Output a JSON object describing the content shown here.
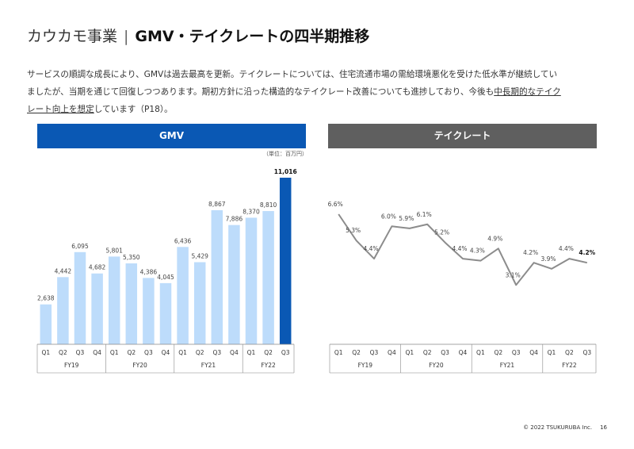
{
  "header": {
    "segment": "カウカモ事業",
    "separator": "|",
    "title": "GMV・テイクレートの四半期推移"
  },
  "description": {
    "line1": "サービスの順調な成長により、GMVは過去最高を更新。テイクレートについては、住宅流通市場の需給環境悪化を受けた低水準が継続してい",
    "line2": "ましたが、当期を通じて回復しつつあります。期初方針に沿った構造的なテイクレート改善についても進捗しており、今後も",
    "line2_underlined": "中長期的なテイク",
    "line3_underlined": "レート向上を想定",
    "line3": "しています（P18）。"
  },
  "colors": {
    "gmv_header": "#0a58b4",
    "take_header": "#5f5f5f",
    "bar_light": "#bddcfb",
    "bar_highlight": "#0a58b4",
    "line": "#8c8c8c"
  },
  "chart_data": [
    {
      "type": "bar",
      "title": "GMV",
      "unit_note": "（単位：百万円）",
      "quarters": [
        "Q1",
        "Q2",
        "Q3",
        "Q4",
        "Q1",
        "Q2",
        "Q3",
        "Q4",
        "Q1",
        "Q2",
        "Q3",
        "Q4",
        "Q1",
        "Q2",
        "Q3"
      ],
      "fiscal_years": [
        {
          "label": "FY19",
          "quarters": 4
        },
        {
          "label": "FY20",
          "quarters": 4
        },
        {
          "label": "FY21",
          "quarters": 4
        },
        {
          "label": "FY22",
          "quarters": 3
        }
      ],
      "values": [
        2638,
        4442,
        6095,
        4682,
        5801,
        5350,
        4386,
        4045,
        6436,
        5429,
        8867,
        7886,
        8370,
        8810,
        11016
      ],
      "value_labels": [
        "2,638",
        "4,442",
        "6,095",
        "4,682",
        "5,801",
        "5,350",
        "4,386",
        "4,045",
        "6,436",
        "5,429",
        "8,867",
        "7,886",
        "8,370",
        "8,810",
        "11,016"
      ],
      "highlight_index": 14,
      "ylim": [
        0,
        11016
      ],
      "grid": false
    },
    {
      "type": "line",
      "title": "テイクレート",
      "quarters": [
        "Q1",
        "Q2",
        "Q3",
        "Q4",
        "Q1",
        "Q2",
        "Q3",
        "Q4",
        "Q1",
        "Q2",
        "Q3",
        "Q4",
        "Q1",
        "Q2",
        "Q3"
      ],
      "fiscal_years": [
        {
          "label": "FY19",
          "quarters": 4
        },
        {
          "label": "FY20",
          "quarters": 4
        },
        {
          "label": "FY21",
          "quarters": 4
        },
        {
          "label": "FY22",
          "quarters": 3
        }
      ],
      "values": [
        6.6,
        5.3,
        4.4,
        6.0,
        5.9,
        6.1,
        5.2,
        4.4,
        4.3,
        4.9,
        3.1,
        4.2,
        3.9,
        4.4,
        4.2
      ],
      "value_labels": [
        "6.6%",
        "5.3%",
        "4.4%",
        "6.0%",
        "5.9%",
        "6.1%",
        "5.2%",
        "4.4%",
        "4.3%",
        "4.9%",
        "3.1%",
        "4.2%",
        "3.9%",
        "4.4%",
        "4.2%"
      ],
      "highlight_index": 14,
      "ylim": [
        0,
        7
      ],
      "grid": false
    }
  ],
  "footer": {
    "copyright": "© 2022 TSUKURUBA Inc.",
    "page": "16"
  }
}
